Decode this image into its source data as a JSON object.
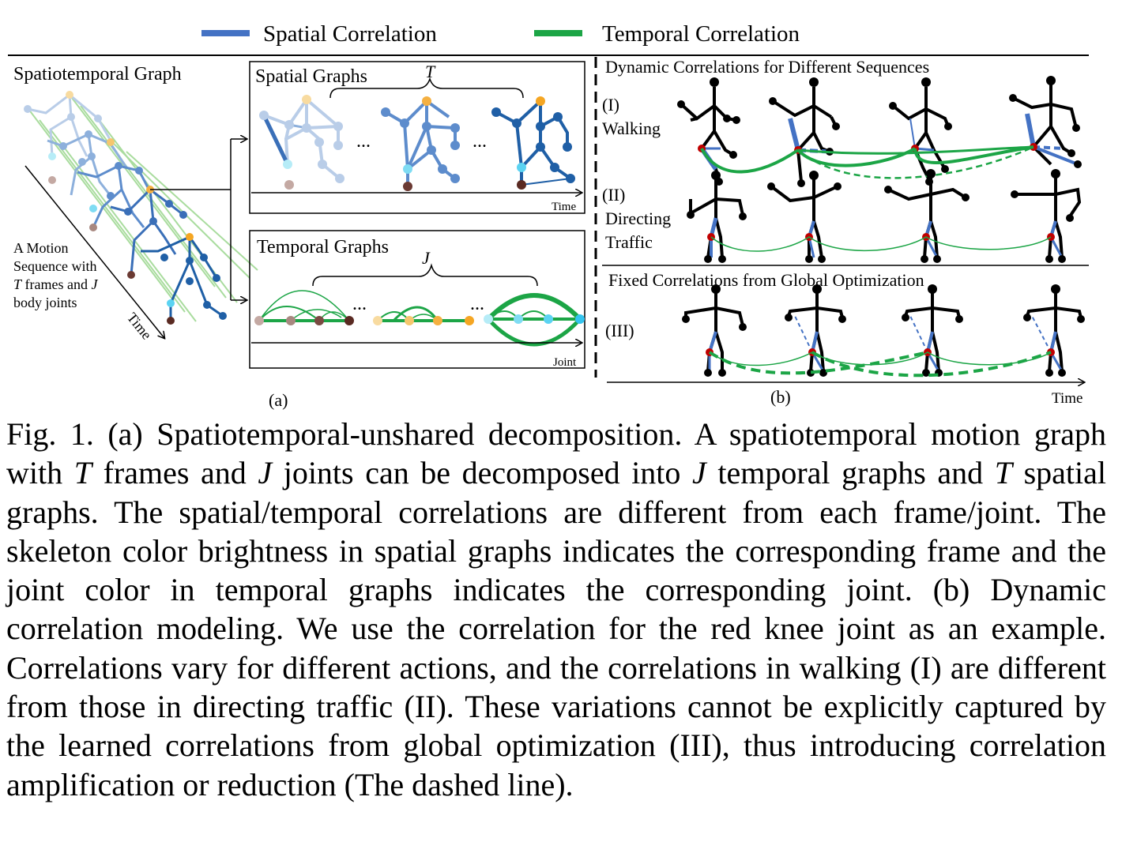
{
  "colors": {
    "spatial": "#4472c4",
    "temporal": "#1ca546",
    "joint_red": "#c00000",
    "dark_brown": "#5a2a22",
    "orange": "#f5b041",
    "cyan": "#5bd3f2",
    "mauve": "#a88880",
    "light_green": "#a9dc9e"
  },
  "legend": {
    "spatial": "Spatial Correlation",
    "temporal": "Temporal Correlation"
  },
  "panel_a": {
    "st_title": "Spatiotemporal Graph",
    "motion_l1": "A Motion",
    "motion_l2": "Sequence with",
    "motion_l3a": "T",
    "motion_l3b": " frames and ",
    "motion_l3c": "J",
    "motion_l4": "body joints",
    "time_axis": "Time",
    "spatial_title": "Spatial Graphs",
    "spatial_brace": "T",
    "ellipsis": "...",
    "spatial_axis": "Time",
    "temporal_title": "Temporal Graphs",
    "temporal_brace": "J",
    "temporal_axis": "Joint",
    "label": "(a)"
  },
  "panel_b": {
    "dyn_title": "Dynamic Correlations for Different Sequences",
    "walk_num": "(I)",
    "walk_name": "Walking",
    "dir_num": "(II)",
    "dir_name1": "Directing",
    "dir_name2": "Traffic",
    "fixed_title": "Fixed Correlations from Global Optimization",
    "fixed_num": "(III)",
    "time_axis": "Time",
    "label": "(b)"
  },
  "caption": {
    "p1": "Fig. 1.  (a) Spatiotemporal-unshared decomposition. A spatiotemporal motion graph with ",
    "T1": "T",
    "p2": " frames and ",
    "J1": "J",
    "p3": " joints can be decomposed into ",
    "J2": "J",
    "p4": " temporal graphs and ",
    "T2": "T",
    "p5": " spatial graphs. The spatial/temporal correlations are different from each frame/joint. The skeleton color brightness in spatial graphs indicates the corresponding frame and the joint color in temporal graphs indicates the corresponding joint. (b) Dynamic correlation modeling. We use the correlation for the red knee joint as an example. Correlations vary for different actions, and the correlations in walking (I) are different from those in directing traffic (II). These variations cannot be explicitly captured by the learned correlations from global optimization (III), thus introducing correlation amplification or reduction (The dashed line)."
  }
}
